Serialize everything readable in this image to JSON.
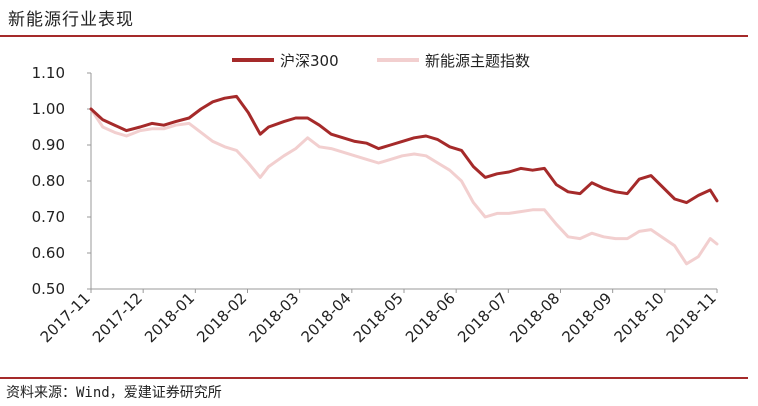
{
  "title": "新能源行业表现",
  "source": "资料来源：Wind，爱建证券研究所",
  "colors": {
    "hs300": "#a52a2a",
    "newenergy": "#f2cfcf",
    "rule": "#a52a2a"
  },
  "chart_data": {
    "type": "line",
    "ylim": [
      0.5,
      1.1
    ],
    "yticks": [
      "1.10",
      "1.00",
      "0.90",
      "0.80",
      "0.70",
      "0.60",
      "0.50"
    ],
    "xticks": [
      "2017-11",
      "2017-12",
      "2018-01",
      "2018-02",
      "2018-03",
      "2018-04",
      "2018-05",
      "2018-06",
      "2018-07",
      "2018-08",
      "2018-09",
      "2018-10",
      "2018-11"
    ],
    "legend_position": "top-center",
    "series": [
      {
        "name": "沪深300",
        "x": [
          "2017-11-01",
          "2017-11-08",
          "2017-11-15",
          "2017-11-22",
          "2017-11-30",
          "2017-12-07",
          "2017-12-14",
          "2017-12-21",
          "2017-12-29",
          "2018-01-05",
          "2018-01-12",
          "2018-01-19",
          "2018-01-26",
          "2018-02-02",
          "2018-02-09",
          "2018-02-14",
          "2018-02-23",
          "2018-03-02",
          "2018-03-09",
          "2018-03-16",
          "2018-03-23",
          "2018-03-30",
          "2018-04-06",
          "2018-04-13",
          "2018-04-20",
          "2018-04-27",
          "2018-05-04",
          "2018-05-11",
          "2018-05-18",
          "2018-05-25",
          "2018-06-01",
          "2018-06-08",
          "2018-06-15",
          "2018-06-22",
          "2018-06-29",
          "2018-07-06",
          "2018-07-13",
          "2018-07-20",
          "2018-07-27",
          "2018-08-03",
          "2018-08-10",
          "2018-08-17",
          "2018-08-24",
          "2018-08-31",
          "2018-09-07",
          "2018-09-14",
          "2018-09-21",
          "2018-09-28",
          "2018-10-12",
          "2018-10-19",
          "2018-10-26",
          "2018-11-02",
          "2018-11-06"
        ],
        "values": [
          1.0,
          0.97,
          0.955,
          0.94,
          0.95,
          0.96,
          0.955,
          0.965,
          0.975,
          1.0,
          1.02,
          1.03,
          1.035,
          0.99,
          0.93,
          0.95,
          0.965,
          0.975,
          0.975,
          0.955,
          0.93,
          0.92,
          0.91,
          0.905,
          0.89,
          0.9,
          0.91,
          0.92,
          0.925,
          0.915,
          0.895,
          0.885,
          0.84,
          0.81,
          0.82,
          0.825,
          0.835,
          0.83,
          0.835,
          0.79,
          0.77,
          0.765,
          0.795,
          0.78,
          0.77,
          0.765,
          0.805,
          0.815,
          0.75,
          0.74,
          0.76,
          0.775,
          0.745
        ]
      },
      {
        "name": "新能源主题指数",
        "x": [
          "2017-11-01",
          "2017-11-08",
          "2017-11-15",
          "2017-11-22",
          "2017-11-30",
          "2017-12-07",
          "2017-12-14",
          "2017-12-21",
          "2017-12-29",
          "2018-01-05",
          "2018-01-12",
          "2018-01-19",
          "2018-01-26",
          "2018-02-02",
          "2018-02-09",
          "2018-02-14",
          "2018-02-23",
          "2018-03-02",
          "2018-03-09",
          "2018-03-16",
          "2018-03-23",
          "2018-03-30",
          "2018-04-06",
          "2018-04-13",
          "2018-04-20",
          "2018-04-27",
          "2018-05-04",
          "2018-05-11",
          "2018-05-18",
          "2018-05-25",
          "2018-06-01",
          "2018-06-08",
          "2018-06-15",
          "2018-06-22",
          "2018-06-29",
          "2018-07-06",
          "2018-07-13",
          "2018-07-20",
          "2018-07-27",
          "2018-08-03",
          "2018-08-10",
          "2018-08-17",
          "2018-08-24",
          "2018-08-31",
          "2018-09-07",
          "2018-09-14",
          "2018-09-21",
          "2018-09-28",
          "2018-10-12",
          "2018-10-19",
          "2018-10-26",
          "2018-11-02",
          "2018-11-06"
        ],
        "values": [
          1.0,
          0.95,
          0.935,
          0.925,
          0.94,
          0.945,
          0.945,
          0.955,
          0.96,
          0.935,
          0.91,
          0.895,
          0.885,
          0.85,
          0.81,
          0.84,
          0.87,
          0.89,
          0.92,
          0.895,
          0.89,
          0.88,
          0.87,
          0.86,
          0.85,
          0.86,
          0.87,
          0.875,
          0.87,
          0.85,
          0.83,
          0.8,
          0.74,
          0.7,
          0.71,
          0.71,
          0.715,
          0.72,
          0.72,
          0.68,
          0.645,
          0.64,
          0.655,
          0.645,
          0.64,
          0.64,
          0.66,
          0.665,
          0.62,
          0.57,
          0.59,
          0.64,
          0.625
        ]
      }
    ]
  }
}
